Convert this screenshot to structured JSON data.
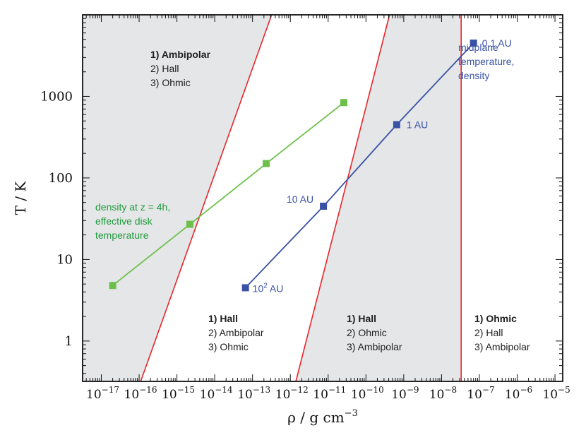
{
  "chart_data": {
    "type": "line",
    "xlabel": "ρ / g cm⁻³",
    "ylabel": "T / K",
    "xscale": "log",
    "yscale": "log",
    "xlim": [
      3.2e-18,
      1.6e-05
    ],
    "ylim": [
      0.32,
      10000
    ],
    "grid": false,
    "x_ticks": [
      {
        "value": 1e-17,
        "base": "10",
        "exp": "−17"
      },
      {
        "value": 1e-16,
        "base": "10",
        "exp": "−16"
      },
      {
        "value": 1e-15,
        "base": "10",
        "exp": "−15"
      },
      {
        "value": 1e-14,
        "base": "10",
        "exp": "−14"
      },
      {
        "value": 1e-13,
        "base": "10",
        "exp": "−13"
      },
      {
        "value": 1e-12,
        "base": "10",
        "exp": "−12"
      },
      {
        "value": 1e-11,
        "base": "10",
        "exp": "−11"
      },
      {
        "value": 1e-10,
        "base": "10",
        "exp": "−10"
      },
      {
        "value": 1e-09,
        "base": "10",
        "exp": "−9"
      },
      {
        "value": 1e-08,
        "base": "10",
        "exp": "−8"
      },
      {
        "value": 1e-07,
        "base": "10",
        "exp": "−7"
      },
      {
        "value": 1e-06,
        "base": "10",
        "exp": "−6"
      },
      {
        "value": 1e-05,
        "base": "10",
        "exp": "−5"
      }
    ],
    "y_ticks": [
      {
        "value": 1,
        "label": "1"
      },
      {
        "value": 10,
        "label": "10"
      },
      {
        "value": 100,
        "label": "100"
      },
      {
        "value": 1000,
        "label": "1000"
      }
    ],
    "boundaries": [
      {
        "type": "line",
        "x": [
          1.1e-16,
          3.2e-13
        ],
        "y": [
          0.32,
          10000
        ]
      },
      {
        "type": "line",
        "x": [
          1.4e-12,
          4.2e-10
        ],
        "y": [
          0.32,
          10000
        ]
      },
      {
        "type": "vertical",
        "x": 3.3e-08
      }
    ],
    "shaded_regions": [
      {
        "polygon": [
          [
            3.2e-18,
            0.32
          ],
          [
            1.1e-16,
            0.32
          ],
          [
            3.2e-13,
            10000
          ],
          [
            3.2e-18,
            10000
          ]
        ]
      },
      {
        "polygon": [
          [
            1.4e-12,
            0.32
          ],
          [
            3.3e-08,
            0.32
          ],
          [
            3.3e-08,
            10000
          ],
          [
            4.2e-10,
            10000
          ]
        ]
      }
    ],
    "series": [
      {
        "color": "#6cc04a",
        "x": [
          2e-17,
          2.2e-15,
          2.3e-13,
          2.6e-11
        ],
        "y": [
          4.8,
          27,
          150,
          840
        ],
        "labels": [
          "",
          "",
          "",
          ""
        ]
      },
      {
        "color": "#3a52a6",
        "x": [
          6.5e-14,
          7.5e-12,
          6.5e-10,
          7e-08
        ],
        "y": [
          4.5,
          45,
          450,
          4500
        ],
        "labels": [
          "10² AU",
          "10 AU",
          "1 AU",
          "0.1 AU"
        ]
      }
    ],
    "annotations": [
      {
        "color": "#3a52a6",
        "lines": [
          "midplane",
          "temperature,",
          "density"
        ]
      },
      {
        "color": "#1f9a3c",
        "lines": [
          "density at z = 4h,",
          "effective disk",
          "temperature"
        ]
      }
    ],
    "region_labels": [
      {
        "lines": [
          "1) Ambipolar",
          "2) Hall",
          "3) Ohmic"
        ]
      },
      {
        "lines": [
          "1) Hall",
          "2) Ambipolar",
          "3) Ohmic"
        ]
      },
      {
        "lines": [
          "1) Hall",
          "2) Ohmic",
          "3) Ambipolar"
        ]
      },
      {
        "lines": [
          "1) Ohmic",
          "2) Hall",
          "3) Ambipolar"
        ]
      }
    ]
  }
}
